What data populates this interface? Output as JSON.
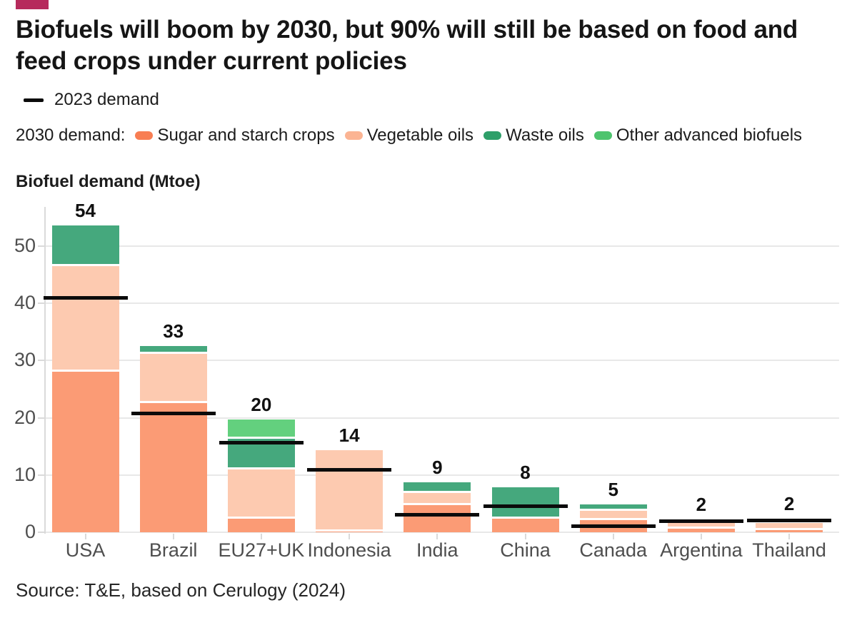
{
  "accent_color": "#B62A5C",
  "title_lines": [
    "Biofuels will boom by 2030, but 90% will still be based on food and",
    "feed crops under current policies"
  ],
  "legend_2023": {
    "label": "2023 demand"
  },
  "legend_2030": {
    "prefix": "2030 demand:",
    "items": [
      {
        "label": "Sugar and starch crops",
        "swatch_color": "#F87E53",
        "bar_color": "#FB9B75"
      },
      {
        "label": "Vegetable oils",
        "swatch_color": "#FBB493",
        "bar_color": "#FDCAB0"
      },
      {
        "label": "Waste oils",
        "swatch_color": "#2E9F69",
        "bar_color": "#45A87D"
      },
      {
        "label": "Other advanced biofuels",
        "swatch_color": "#4EC46E",
        "bar_color": "#63D07E"
      }
    ]
  },
  "axis_title": "Biofuel demand (Mtoe)",
  "source": "Source: T&E, based on Cerulogy (2024)",
  "chart_data": {
    "type": "bar",
    "stacked": true,
    "title": "Biofuels will boom by 2030, but 90% will still be based on food and feed crops under current policies",
    "ylabel": "Biofuel demand (Mtoe)",
    "categories": [
      "USA",
      "Brazil",
      "EU27+UK",
      "Indonesia",
      "India",
      "China",
      "Canada",
      "Argentina",
      "Thailand"
    ],
    "series": [
      {
        "name": "Sugar and starch crops",
        "values": [
          28.3,
          22.7,
          2.6,
          0.3,
          4.9,
          2.6,
          2.3,
          0.8,
          0.6
        ]
      },
      {
        "name": "Vegetable oils",
        "values": [
          18.4,
          8.6,
          8.5,
          14.0,
          2.2,
          0,
          1.6,
          1.4,
          1.0
        ]
      },
      {
        "name": "Waste oils",
        "values": [
          6.9,
          1.2,
          5.4,
          0,
          1.6,
          5.2,
          1.0,
          0,
          0
        ]
      },
      {
        "name": "Other advanced biofuels",
        "values": [
          0,
          0,
          3.2,
          0,
          0,
          0,
          0,
          0,
          0
        ]
      }
    ],
    "total_labels": [
      "54",
      "33",
      "20",
      "14",
      "9",
      "8",
      "5",
      "2",
      "2"
    ],
    "line_2023": {
      "name": "2023 demand",
      "values": [
        41,
        20.7,
        15.6,
        10.9,
        3.1,
        4.5,
        1.1,
        1.9,
        2.0
      ]
    },
    "yticks": [
      0,
      10,
      20,
      30,
      40,
      50
    ],
    "ylim": [
      0,
      55
    ],
    "grid": true,
    "legend_position": "top"
  }
}
